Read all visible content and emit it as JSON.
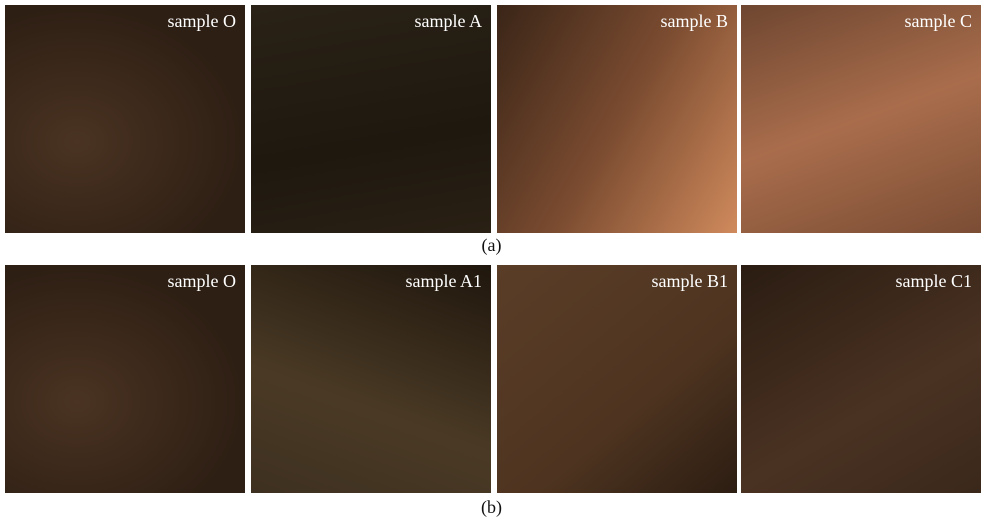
{
  "rows": [
    {
      "caption": "(a)",
      "panels": [
        {
          "label": "sample O"
        },
        {
          "label": "sample A"
        },
        {
          "label": "sample B"
        },
        {
          "label": "sample C"
        }
      ]
    },
    {
      "caption": "(b)",
      "panels": [
        {
          "label": "sample O"
        },
        {
          "label": "sample A1"
        },
        {
          "label": "sample B1"
        },
        {
          "label": "sample C1"
        }
      ]
    }
  ]
}
